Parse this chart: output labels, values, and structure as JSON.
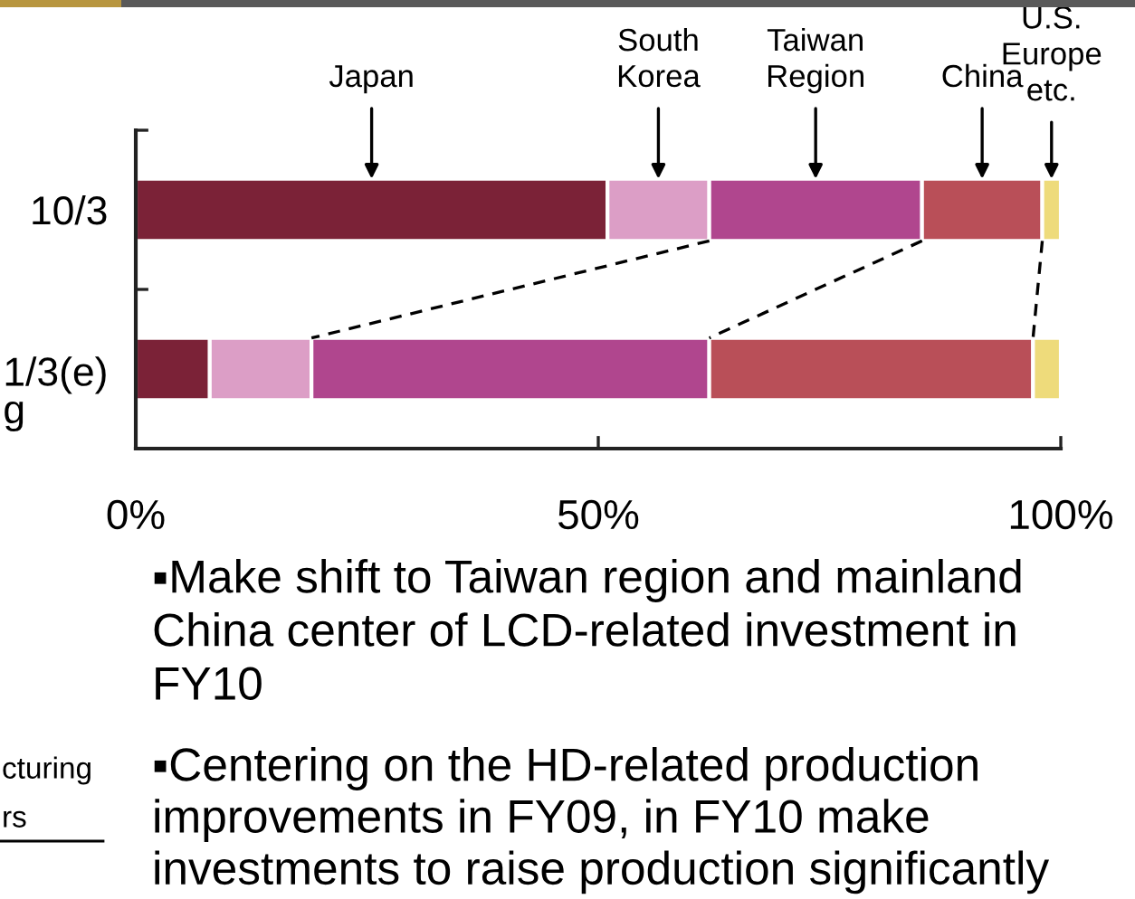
{
  "chart_data": {
    "type": "bar",
    "orientation": "horizontal",
    "stacked": true,
    "categories": [
      "10/3",
      "1/3(e)\ng"
    ],
    "series": [
      {
        "name": "Japan",
        "color": "#7b2237",
        "values": [
          51,
          8
        ]
      },
      {
        "name": "South\nKorea",
        "color": "#dc9ec6",
        "values": [
          11,
          11
        ]
      },
      {
        "name": "Taiwan\nRegion",
        "color": "#b0468e",
        "values": [
          23,
          43
        ]
      },
      {
        "name": "China",
        "color": "#b94f58",
        "values": [
          13,
          35
        ]
      },
      {
        "name": "U.S.\nEurope\netc.",
        "color": "#eedb7b",
        "values": [
          2,
          3
        ]
      }
    ],
    "xlim": [
      0,
      100
    ],
    "xticks": [
      {
        "value": 0,
        "label": "0%"
      },
      {
        "value": 50,
        "label": "50%"
      },
      {
        "value": 100,
        "label": "100%"
      }
    ],
    "annotations": [
      "▪Make shift to Taiwan region and mainland\nChina center of LCD-related investment in\nFY10",
      "▪Centering on the HD-related production\nimprovements in FY09, in FY10 make\ninvestments to raise production significantly",
      "cturing",
      "rs"
    ]
  }
}
